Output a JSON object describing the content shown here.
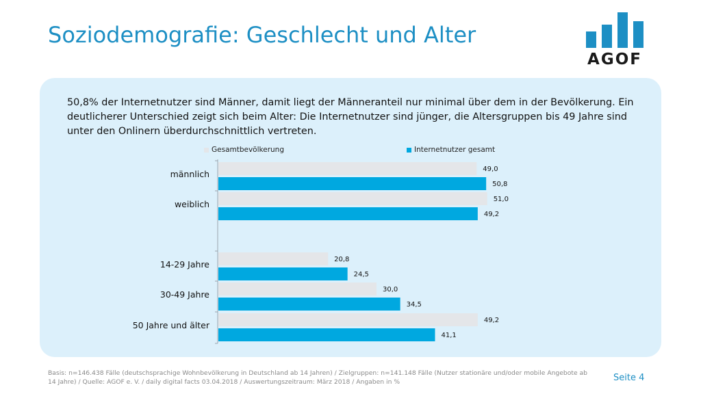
{
  "page": {
    "title": "Soziodemografie: Geschlecht und Alter",
    "logo_text": "AGOF",
    "intro": "50,8% der Internetnutzer sind Männer, damit liegt der Männeranteil nur minimal über dem in der Bevölkerung. Ein deutlicherer Unterschied zeigt sich beim Alter: Die Internetnutzer sind jünger, die Altersgruppen bis 49 Jahre sind unter den Onlinern überdurchschnittlich vertreten.",
    "footer": "Basis: n=146.438 Fälle (deutschsprachige Wohnbevölkerung in Deutschland ab 14 Jahren) / Zielgruppen: n=141.148 Fälle (Nutzer stationäre und/oder mobile Angebote ab 14 Jahre) / Quelle: AGOF e. V. / daily digital facts 03.04.2018 / Auswertungszeitraum: März 2018 / Angaben in %",
    "page_number": "Seite 4"
  },
  "colors": {
    "accent": "#1d8fc4",
    "bar_population": "#e4e6e9",
    "bar_internet": "#00a8e0",
    "panel": "#dcf0fb"
  },
  "chart_data": {
    "type": "bar",
    "orientation": "horizontal",
    "categories": [
      "männlich",
      "weiblich",
      "14-29 Jahre",
      "30-49 Jahre",
      "50 Jahre und älter"
    ],
    "series": [
      {
        "name": "Gesamtbevölkerung",
        "values": [
          49.0,
          51.0,
          20.8,
          30.0,
          49.2
        ],
        "labels": [
          "49,0",
          "51,0",
          "20,8",
          "30,0",
          "49,2"
        ]
      },
      {
        "name": "Internetnutzer gesamt",
        "values": [
          50.8,
          49.2,
          24.5,
          34.5,
          41.1
        ],
        "labels": [
          "50,8",
          "49,2",
          "24,5",
          "34,5",
          "41,1"
        ]
      }
    ],
    "xlim": [
      0,
      100
    ],
    "legend_position": "top",
    "grid": false
  }
}
